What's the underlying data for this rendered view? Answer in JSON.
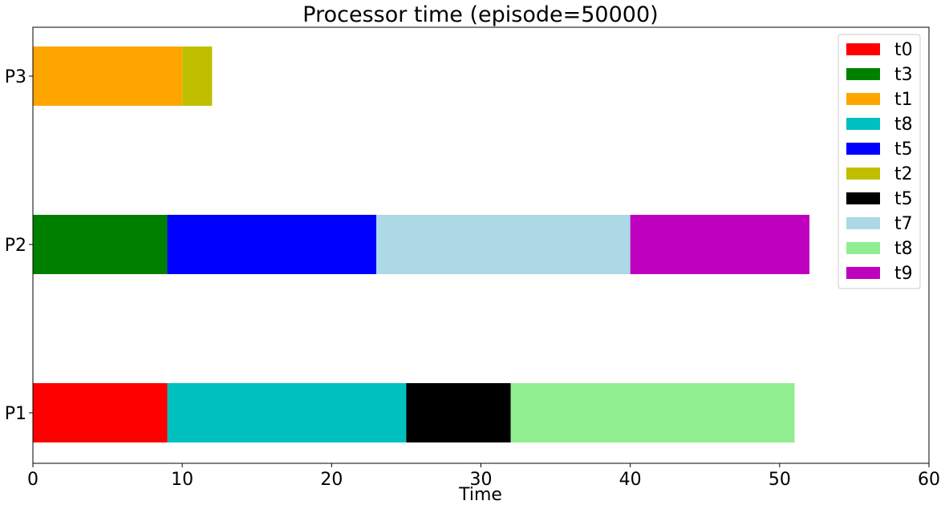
{
  "chart_data": {
    "type": "bar",
    "orientation": "horizontal",
    "stacked": true,
    "title": "Processor time (episode=50000)",
    "xlabel": "Time",
    "ylabel": "",
    "xlim": [
      0,
      60
    ],
    "xticks": [
      "0",
      "10",
      "20",
      "30",
      "40",
      "50",
      "60"
    ],
    "categories": [
      "P1",
      "P2",
      "P3"
    ],
    "grid": false,
    "legend_position": "top-right",
    "segments": [
      {
        "processor": "P3",
        "task": "t1",
        "start": 0,
        "end": 10,
        "color": "#ffa500"
      },
      {
        "processor": "P3",
        "task": "t2",
        "start": 10,
        "end": 12,
        "color": "#bfbf00"
      },
      {
        "processor": "P2",
        "task": "t3",
        "start": 0,
        "end": 9,
        "color": "#008000"
      },
      {
        "processor": "P2",
        "task": "t5",
        "start": 9,
        "end": 23,
        "color": "#0000ff"
      },
      {
        "processor": "P2",
        "task": "t7",
        "start": 23,
        "end": 40,
        "color": "#add8e6"
      },
      {
        "processor": "P2",
        "task": "t9",
        "start": 40,
        "end": 52,
        "color": "#bf00bf"
      },
      {
        "processor": "P1",
        "task": "t0",
        "start": 0,
        "end": 9,
        "color": "#ff0000"
      },
      {
        "processor": "P1",
        "task": "t8",
        "start": 9,
        "end": 25,
        "color": "#00bfbf"
      },
      {
        "processor": "P1",
        "task": "t5",
        "start": 25,
        "end": 32,
        "color": "#000000"
      },
      {
        "processor": "P1",
        "task": "t8",
        "start": 32,
        "end": 51,
        "color": "#90ee90"
      }
    ],
    "legend": [
      {
        "label": "t0",
        "color": "#ff0000"
      },
      {
        "label": "t3",
        "color": "#008000"
      },
      {
        "label": "t1",
        "color": "#ffa500"
      },
      {
        "label": "t8",
        "color": "#00bfbf"
      },
      {
        "label": "t5",
        "color": "#0000ff"
      },
      {
        "label": "t2",
        "color": "#bfbf00"
      },
      {
        "label": "t5",
        "color": "#000000"
      },
      {
        "label": "t7",
        "color": "#add8e6"
      },
      {
        "label": "t8",
        "color": "#90ee90"
      },
      {
        "label": "t9",
        "color": "#bf00bf"
      }
    ]
  }
}
